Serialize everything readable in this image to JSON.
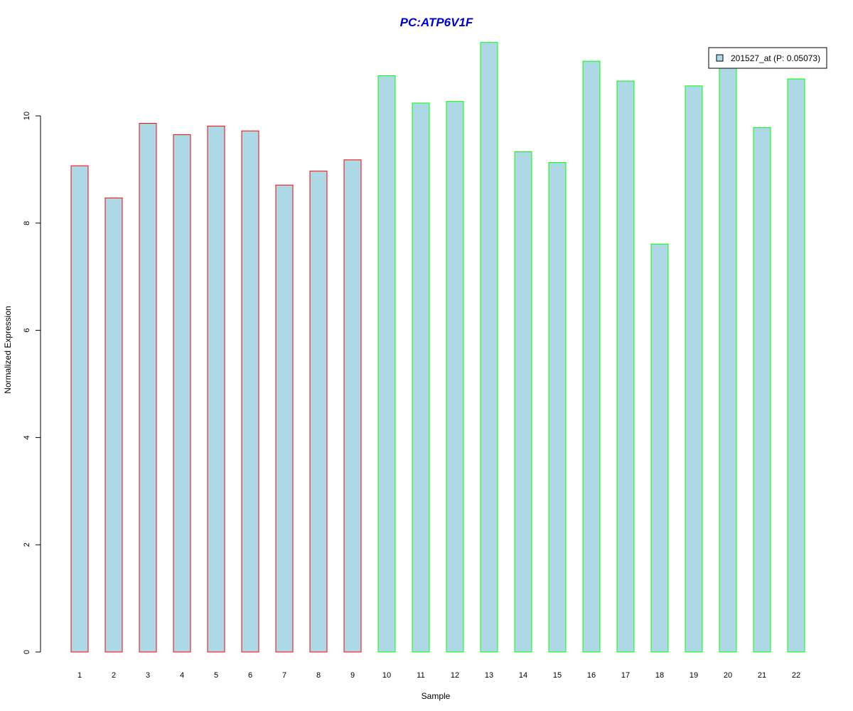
{
  "chart_data": {
    "type": "bar",
    "title": "PC:ATP6V1F",
    "xlabel": "Sample",
    "ylabel": "Normalized Expression",
    "categories": [
      "1",
      "2",
      "3",
      "4",
      "5",
      "6",
      "7",
      "8",
      "9",
      "10",
      "11",
      "12",
      "13",
      "14",
      "15",
      "16",
      "17",
      "18",
      "19",
      "20",
      "21",
      "22"
    ],
    "values": [
      9.07,
      8.47,
      9.86,
      9.65,
      9.81,
      9.72,
      8.71,
      8.97,
      9.18,
      10.75,
      10.24,
      10.27,
      11.37,
      9.33,
      9.13,
      11.02,
      10.65,
      7.61,
      10.56,
      10.97,
      9.78,
      10.69
    ],
    "bar_fill": "#add8e6",
    "bar_outline_colors": [
      "#ff0000",
      "#ff0000",
      "#ff0000",
      "#ff0000",
      "#ff0000",
      "#ff0000",
      "#ff0000",
      "#ff0000",
      "#ff0000",
      "#00ff00",
      "#00ff00",
      "#00ff00",
      "#00ff00",
      "#00ff00",
      "#00ff00",
      "#00ff00",
      "#00ff00",
      "#00ff00",
      "#00ff00",
      "#00ff00",
      "#00ff00",
      "#00ff00"
    ],
    "title_color": "#0000cd",
    "y_ticks": [
      0,
      2,
      4,
      6,
      8,
      10
    ],
    "ylim": [
      0,
      11.5
    ],
    "grid": false,
    "legend": {
      "position": "top-right",
      "entries": [
        {
          "label": "201527_at (P: 0.05073)",
          "color": "#add8e6"
        }
      ]
    }
  }
}
